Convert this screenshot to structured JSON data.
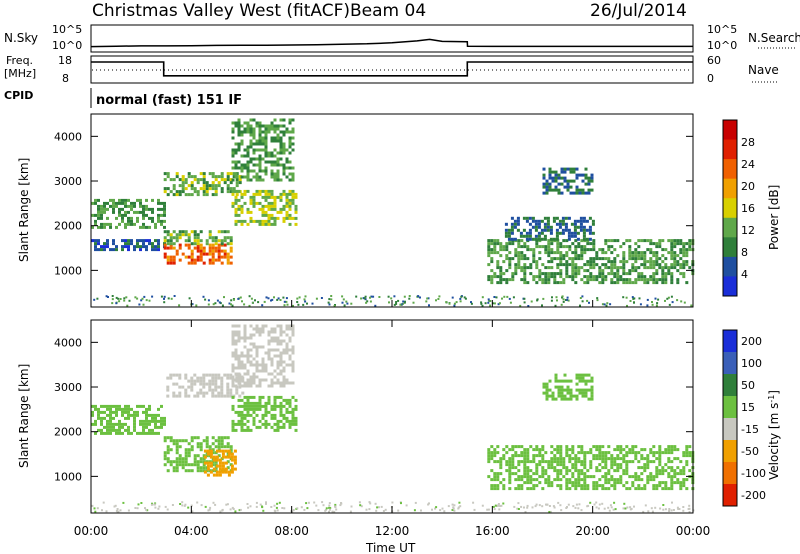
{
  "header": {
    "title": "Christmas Valley West (fitACF)",
    "beam": "Beam 04",
    "date": "26/Jul/2014"
  },
  "summary_panels": {
    "nsky": {
      "left_label": "N.Sky",
      "left_ticks": [
        "10^5",
        "10^0"
      ],
      "right_ticks": [
        "10^5",
        "10^0"
      ],
      "right_label": "N.Search"
    },
    "freq": {
      "left_label_line1": "Freq.",
      "left_label_line2": "[MHz]",
      "left_ticks": [
        "18",
        "8"
      ],
      "right_ticks": [
        "60",
        "0"
      ],
      "right_label": "Nave"
    },
    "cpid": {
      "label": "CPID",
      "value": "normal (fast) 151 IF"
    }
  },
  "colors": {
    "power": [
      "#1a2ed8",
      "#1f4fa0",
      "#2f7f3a",
      "#5fa84a",
      "#d8d000",
      "#f0a000",
      "#f06000",
      "#e02000",
      "#c80000"
    ],
    "velocity": [
      "#1a2ed8",
      "#3a5fb8",
      "#2f7f3a",
      "#6cc040",
      "#c8c8c0",
      "#f0a000",
      "#f07000",
      "#e02000"
    ]
  },
  "colorbars": {
    "power": {
      "label": "Power [dB]",
      "ticks": [
        "4",
        "8",
        "12",
        "16",
        "20",
        "24",
        "28"
      ]
    },
    "velocity": {
      "label": "Velocity [m s",
      "label_sup": "-1",
      "label_end": "]",
      "ticks": [
        "200",
        "100",
        "50",
        "15",
        "-15",
        "-50",
        "-100",
        "-200"
      ]
    }
  },
  "chart_data": [
    {
      "type": "line",
      "name": "nsky",
      "x": [
        0,
        1,
        2,
        3,
        4,
        5,
        6,
        7,
        8,
        9,
        10,
        11,
        12,
        13,
        13.5,
        14,
        15,
        15.01,
        16,
        18,
        20,
        22,
        24
      ],
      "y": [
        0.7,
        0.8,
        0.85,
        0.85,
        0.9,
        0.95,
        1.0,
        1.0,
        1.05,
        1.1,
        1.2,
        1.3,
        1.5,
        1.9,
        2.2,
        1.8,
        1.7,
        0.8,
        0.75,
        0.75,
        0.75,
        0.75,
        0.75
      ],
      "ylim": [
        0,
        5
      ]
    },
    {
      "type": "line",
      "name": "frequency",
      "x": [
        0,
        2.9,
        2.9,
        15,
        15,
        24
      ],
      "y": [
        16,
        16,
        10.5,
        10.5,
        16,
        16
      ],
      "ylim": [
        8,
        18
      ]
    },
    {
      "type": "heatmap",
      "name": "power",
      "xlabel": "",
      "ylabel": "Slant Range [km]",
      "xlim": [
        0,
        24
      ],
      "ylim": [
        180,
        4500
      ],
      "y_ticks": [
        1000,
        2000,
        3000,
        4000
      ],
      "features": [
        {
          "t0": 0.0,
          "t1": 2.9,
          "r0": 1950,
          "r1": 2600,
          "p": 12
        },
        {
          "t0": 0.0,
          "t1": 2.9,
          "r0": 1450,
          "r1": 1700,
          "p": 6
        },
        {
          "t0": 2.9,
          "t1": 5.6,
          "r0": 1150,
          "r1": 1600,
          "p": 26
        },
        {
          "t0": 2.9,
          "t1": 5.6,
          "r0": 1600,
          "r1": 1900,
          "p": 14
        },
        {
          "t0": 2.9,
          "t1": 6.0,
          "r0": 2700,
          "r1": 3200,
          "p": 14
        },
        {
          "t0": 5.6,
          "t1": 8.2,
          "r0": 2000,
          "r1": 2800,
          "p": 16
        },
        {
          "t0": 5.6,
          "t1": 8.0,
          "r0": 3000,
          "r1": 4400,
          "p": 12
        },
        {
          "t0": 15.8,
          "t1": 24.0,
          "r0": 700,
          "r1": 1700,
          "p": 12
        },
        {
          "t0": 16.5,
          "t1": 20.0,
          "r0": 1700,
          "r1": 2200,
          "p": 8
        },
        {
          "t0": 18.0,
          "t1": 20.0,
          "r0": 2700,
          "r1": 3300,
          "p": 8
        }
      ]
    },
    {
      "type": "heatmap",
      "name": "velocity",
      "xlabel": "Time UT",
      "ylabel": "Slant Range [km]",
      "xlim": [
        0,
        24
      ],
      "ylim": [
        180,
        4500
      ],
      "y_ticks": [
        1000,
        2000,
        3000,
        4000
      ],
      "x_ticks": [
        "00:00",
        "04:00",
        "08:00",
        "12:00",
        "16:00",
        "20:00",
        "00:00"
      ],
      "features": [
        {
          "t0": 0.0,
          "t1": 2.9,
          "r0": 1950,
          "r1": 2600,
          "v": 0
        },
        {
          "t0": 2.9,
          "t1": 5.6,
          "r0": 1150,
          "r1": 1900,
          "v": 0
        },
        {
          "t0": 4.5,
          "t1": 5.8,
          "r0": 1000,
          "r1": 1600,
          "v": -80
        },
        {
          "t0": 3.0,
          "t1": 6.0,
          "r0": 2800,
          "r1": 3300,
          "v": -30
        },
        {
          "t0": 5.6,
          "t1": 8.2,
          "r0": 2000,
          "r1": 2800,
          "v": 0
        },
        {
          "t0": 5.6,
          "t1": 8.0,
          "r0": 3000,
          "r1": 4400,
          "v": -30
        },
        {
          "t0": 15.8,
          "t1": 24.0,
          "r0": 700,
          "r1": 1700,
          "v": 0
        },
        {
          "t0": 18.0,
          "t1": 20.0,
          "r0": 2700,
          "r1": 3300,
          "v": 0
        }
      ]
    }
  ]
}
